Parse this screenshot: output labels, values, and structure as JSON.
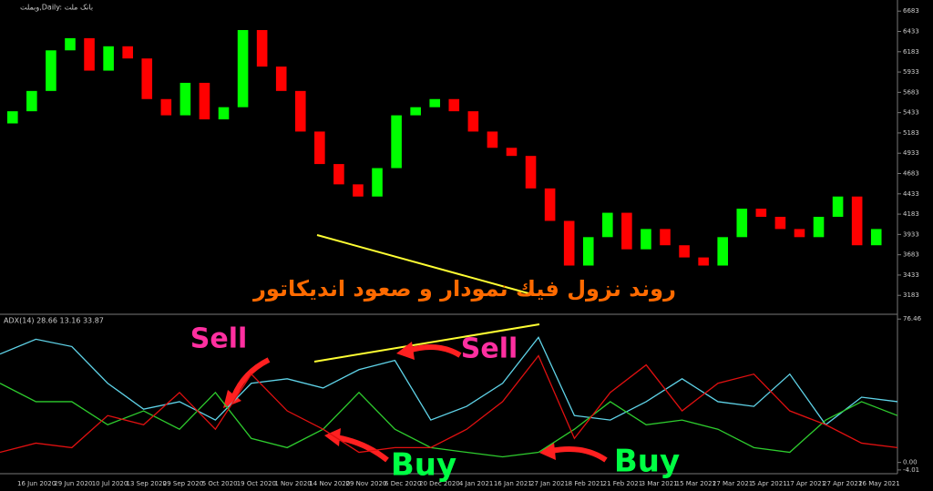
{
  "symbol_label": "وبملت,Daily: بانک ملت",
  "headline": "روند نزول فیك نمودار و صعود اندیكاتور",
  "annotations": [
    "Sell",
    "Sell",
    "Buy",
    "Buy"
  ],
  "time_axis": [
    "16 Jun 2020",
    "29 Jun 2020",
    "10 Jul 2020",
    "13 Sep 2020",
    "29 Sep 2020",
    "5 Oct 2020",
    "19 Oct 2020",
    "1 Nov 2020",
    "14 Nov 2020",
    "29 Nov 2020",
    "6 Dec 2020",
    "20 Dec 2020",
    "4 Jan 2021",
    "16 Jan 2021",
    "27 Jan 2021",
    "8 Feb 2021",
    "21 Feb 2021",
    "3 Mar 2021",
    "15 Mar 2021",
    "27 Mar 2021",
    "5 Apr 2021",
    "17 Apr 2021",
    "27 Apr 2021",
    "26 May 2021"
  ],
  "chart_data": [
    {
      "type": "candlestick",
      "open": [
        5300,
        5450,
        5700,
        6200,
        6350,
        5950,
        6250,
        6100,
        5600,
        5400,
        5800,
        5350,
        5500,
        6450,
        6000,
        5700,
        5200,
        4800,
        4550,
        4400,
        4750,
        5400,
        5500,
        5600,
        5450,
        5200,
        5000,
        4900,
        4500,
        4100,
        3550,
        3900,
        4200,
        3750,
        4000,
        3800,
        3650,
        3550,
        3900,
        4250,
        4150,
        4000,
        3900,
        4150,
        4400,
        3800
      ],
      "close": [
        5450,
        5700,
        6200,
        6350,
        5950,
        6250,
        6100,
        5600,
        5400,
        5800,
        5350,
        5500,
        6450,
        6000,
        5700,
        5200,
        4800,
        4550,
        4400,
        4750,
        5400,
        5500,
        5600,
        5450,
        5200,
        5000,
        4900,
        4500,
        4100,
        3550,
        3900,
        4200,
        3750,
        4000,
        3800,
        3650,
        3550,
        3900,
        4250,
        4150,
        4000,
        3900,
        4150,
        4400,
        3800,
        4000
      ],
      "up_color": "#00ff00",
      "down_color": "#ff0000",
      "ylim": [
        2950,
        6820
      ],
      "yticks": [
        6683,
        6433,
        6183,
        5933,
        5683,
        5433,
        5183,
        4933,
        4683,
        4433,
        4183,
        3933,
        3683,
        3433,
        3183
      ]
    },
    {
      "type": "line",
      "title": "ADX(14) 28.66 13.16 33.87",
      "series": [
        {
          "color": "#5fd3e8",
          "values": [
            57.8,
            65.7,
            61.8,
            42.2,
            28.4,
            32.4,
            22.6,
            42.2,
            44.6,
            39.7,
            49.5,
            54.4,
            22.6,
            29.9,
            42.2,
            66.7,
            25.0,
            22.6,
            32.4,
            44.6,
            32.4,
            29.9,
            47.1,
            20.1,
            34.8,
            32.4
          ]
        },
        {
          "color": "#2ecc2e",
          "values": [
            42.2,
            32.4,
            32.4,
            20.1,
            27.5,
            17.7,
            37.3,
            12.8,
            7.9,
            17.7,
            37.3,
            17.7,
            7.9,
            5.4,
            3.0,
            5.4,
            17.7,
            32.4,
            20.1,
            22.6,
            17.7,
            7.9,
            5.4,
            22.6,
            32.4,
            25.0
          ]
        },
        {
          "color": "#e01010",
          "values": [
            5.4,
            10.3,
            7.9,
            25.0,
            20.1,
            37.3,
            17.7,
            47.1,
            27.5,
            17.7,
            5.4,
            7.9,
            7.9,
            17.7,
            32.4,
            56.9,
            12.8,
            37.3,
            52.0,
            27.5,
            42.2,
            47.1,
            27.5,
            20.1,
            10.3,
            7.9
          ]
        }
      ],
      "ylim": [
        -6,
        79
      ],
      "yticks": [
        76.46,
        {
          "value": 0,
          "label": "0.00"
        },
        -4.01
      ]
    }
  ]
}
